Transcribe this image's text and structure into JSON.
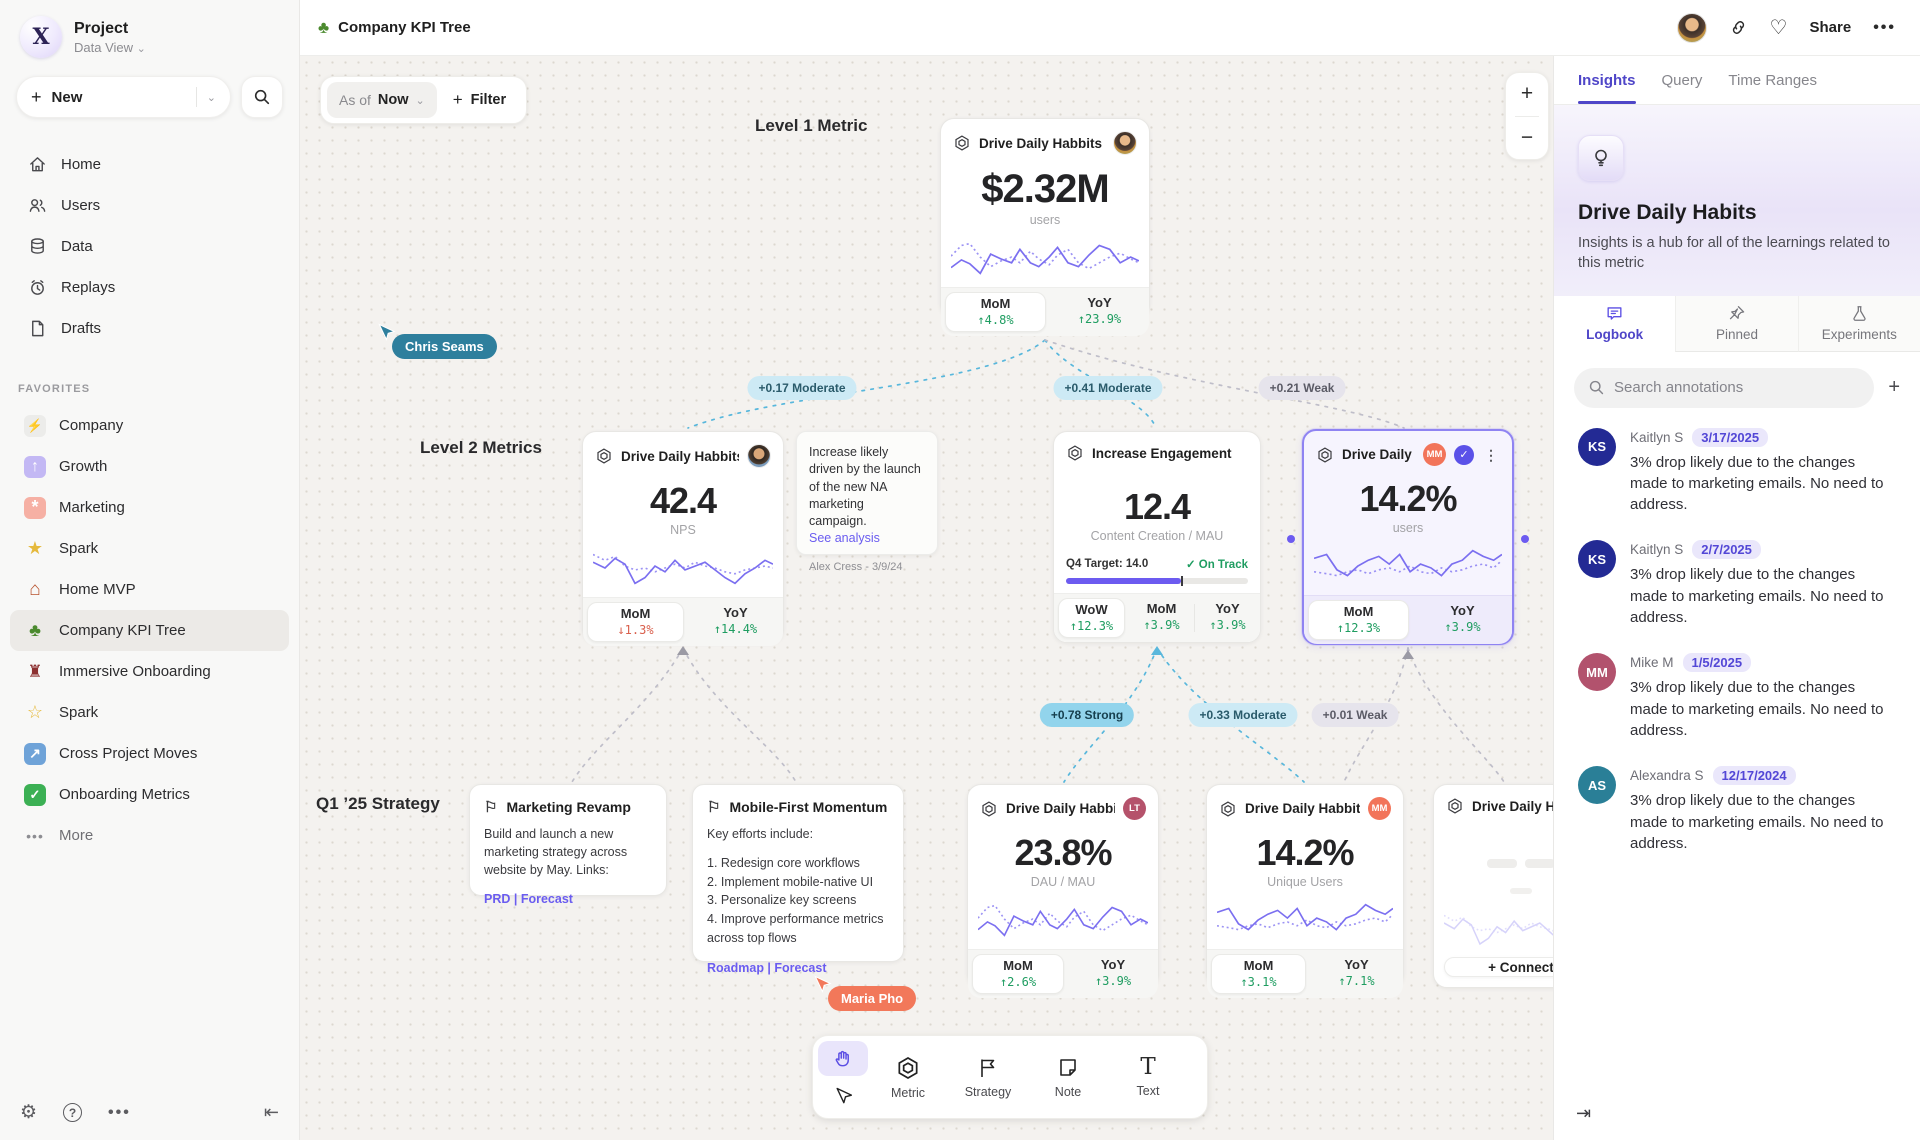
{
  "icons": {
    "logo": "X",
    "chevron": "⌄",
    "tree": "♣",
    "gear": "⚙",
    "help": "?",
    "more": "⋯",
    "collapse_left": "⇤",
    "collapse_right": "⇥",
    "heart": "♡",
    "plus": "+",
    "minus": "−",
    "kebab": "⋮",
    "check": "✓",
    "flag": "⚐",
    "text_tool": "T",
    "dots": "•••"
  },
  "sidebar": {
    "project_name": "Project",
    "project_view": "Data View",
    "new_label": "New",
    "nav": [
      {
        "label": "Home",
        "icon": "home-icon"
      },
      {
        "label": "Users",
        "icon": "users-icon"
      },
      {
        "label": "Data",
        "icon": "database-icon"
      },
      {
        "label": "Replays",
        "icon": "replay-clock-icon"
      },
      {
        "label": "Drafts",
        "icon": "draft-file-icon"
      }
    ],
    "favorites_title": "FAVORITES",
    "favorites": [
      {
        "label": "Company",
        "icon": "lightning",
        "glyph": "⚡"
      },
      {
        "label": "Growth",
        "icon": "rocket",
        "glyph": "↑"
      },
      {
        "label": "Marketing",
        "icon": "confetti",
        "glyph": "*"
      },
      {
        "label": "Spark",
        "icon": "star",
        "glyph": "★"
      },
      {
        "label": "Home MVP",
        "icon": "house",
        "glyph": "⌂"
      },
      {
        "label": "Company KPI Tree",
        "icon": "tree",
        "glyph": "♣"
      },
      {
        "label": "Immersive Onboarding",
        "icon": "train",
        "glyph": "♜"
      },
      {
        "label": "Spark",
        "icon": "sparkles",
        "glyph": "☆"
      },
      {
        "label": "Cross Project Moves",
        "icon": "cross-arrow",
        "glyph": "↗"
      },
      {
        "label": "Onboarding Metrics",
        "icon": "check-box",
        "glyph": "✓"
      }
    ],
    "more_label": "More"
  },
  "topbar": {
    "title": "Company KPI Tree",
    "share_label": "Share"
  },
  "canvas": {
    "asof_label": "As of",
    "asof_value": "Now",
    "filter_label": "Filter",
    "sections": {
      "l1": "Level 1 Metric",
      "l2": "Level 2 Metrics",
      "q1": "Q1 ’25 Strategy"
    },
    "edge_labels": [
      {
        "text": "+0.17 Moderate",
        "strength": "moderate"
      },
      {
        "text": "+0.41 Moderate",
        "strength": "moderate"
      },
      {
        "text": "+0.21 Weak",
        "strength": "weak"
      },
      {
        "text": "+0.78 Strong",
        "strength": "strong"
      },
      {
        "text": "+0.33 Moderate",
        "strength": "moderate"
      },
      {
        "text": "+0.01 Weak",
        "strength": "weak"
      }
    ],
    "cursors": [
      {
        "name": "Chris Seams",
        "color": "#2e7f9d"
      },
      {
        "name": "Maria Pho",
        "color": "#f2785a"
      }
    ]
  },
  "cards": {
    "l1": {
      "name": "Drive Daily Habbits",
      "value": "$2.32M",
      "unit": "users",
      "trends": [
        {
          "label": "MoM",
          "value": "↑4.8%",
          "dir": "up"
        },
        {
          "label": "YoY",
          "value": "↑23.9%",
          "dir": "up"
        }
      ]
    },
    "nps": {
      "name": "Drive Daily Habbits",
      "value": "42.4",
      "unit": "NPS",
      "trends": [
        {
          "label": "MoM",
          "value": "↓1.3%",
          "dir": "down"
        },
        {
          "label": "YoY",
          "value": "↑14.4%",
          "dir": "up"
        }
      ]
    },
    "note": {
      "text": "Increase likely driven by the launch of the new NA marketing campaign.",
      "link": "See analysis",
      "attribution": "Alex Cress - 3/9/24"
    },
    "engagement": {
      "name": "Increase Engagement",
      "value": "12.4",
      "unit": "Content Creation / MAU",
      "target_label": "Q4 Target: 14.0",
      "status": "✓ On Track",
      "progress_width": "63%",
      "trends": [
        {
          "label": "WoW",
          "value": "↑12.3%",
          "dir": "up"
        },
        {
          "label": "MoM",
          "value": "↑3.9%",
          "dir": "up"
        },
        {
          "label": "YoY",
          "value": "↑3.9%",
          "dir": "up"
        }
      ]
    },
    "selected": {
      "name": "Drive Daily Habb..",
      "badge": "MM",
      "value": "14.2%",
      "unit": "users",
      "trends": [
        {
          "label": "MoM",
          "value": "↑12.3%",
          "dir": "up"
        },
        {
          "label": "YoY",
          "value": "↑3.9%",
          "dir": "up"
        }
      ]
    },
    "mkt": {
      "name": "Marketing Revamp",
      "body": "Build and launch a new marketing strategy across website by May. Links:",
      "links": "PRD | Forecast"
    },
    "mobile": {
      "name": "Mobile-First Momentum",
      "body": "Key efforts include:",
      "items": [
        "1. Redesign core workflows",
        "2. Implement mobile-native UI",
        "3. Personalize key screens",
        "4. Improve performance metrics across top flows"
      ],
      "links": "Roadmap | Forecast"
    },
    "dau": {
      "name": "Drive Daily Habbits",
      "badge": "LT",
      "value": "23.8%",
      "unit": "DAU / MAU",
      "trends": [
        {
          "label": "MoM",
          "value": "↑2.6%",
          "dir": "up"
        },
        {
          "label": "YoY",
          "value": "↑3.9%",
          "dir": "up"
        }
      ]
    },
    "unique": {
      "name": "Drive Daily Habbits",
      "badge": "MM",
      "value": "14.2%",
      "unit": "Unique Users",
      "trends": [
        {
          "label": "MoM",
          "value": "↑3.1%",
          "dir": "up"
        },
        {
          "label": "YoY",
          "value": "↑7.1%",
          "dir": "up"
        }
      ]
    },
    "partial": {
      "name": "Drive Daily Hab",
      "connect_label": "+ Connect"
    }
  },
  "toolbar": {
    "tools": [
      {
        "label": "Metric"
      },
      {
        "label": "Strategy"
      },
      {
        "label": "Note"
      },
      {
        "label": "Text"
      }
    ]
  },
  "panel": {
    "tabs": [
      {
        "label": "Insights"
      },
      {
        "label": "Query"
      },
      {
        "label": "Time Ranges"
      }
    ],
    "title": "Drive Daily Habits",
    "description": "Insights is a hub for all of the learnings related to this metric",
    "subtabs": [
      {
        "label": "Logbook"
      },
      {
        "label": "Pinned"
      },
      {
        "label": "Experiments"
      }
    ],
    "search_placeholder": "Search annotations",
    "annotations": [
      {
        "initials": "KS",
        "name": "Kaitlyn S",
        "date": "3/17/2025",
        "color": "#232a94",
        "text": "3% drop likely due to the changes made to marketing emails. No need to address."
      },
      {
        "initials": "KS",
        "name": "Kaitlyn S",
        "date": "2/7/2025",
        "color": "#232a94",
        "text": "3% drop likely due to the changes made to marketing emails. No need to address."
      },
      {
        "initials": "MM",
        "name": "Mike M",
        "date": "1/5/2025",
        "color": "#b2526d",
        "text": "3% drop likely due to the changes made to marketing emails. No need to address."
      },
      {
        "initials": "AS",
        "name": "Alexandra S",
        "date": "12/17/2024",
        "color": "#2a7f97",
        "text": "3% drop likely due to the changes made to marketing emails. No need to address."
      }
    ]
  },
  "sparklines": {
    "a": {
      "solid": "0,36 10,28 18,32 28,42 38,22 48,27 58,31 66,17 76,31 84,35 94,25 102,15 112,31 122,35 132,23 142,13 152,17 162,31 172,25 180,29",
      "dotted": "0,24 10,13 18,11 28,25 38,35 48,29 58,25 66,31 76,19 84,27 94,33 102,23 112,17 122,31 132,37 142,31 152,25 162,21 172,27 180,31"
    },
    "b": {
      "solid": "0,20 12,26 22,16 32,22 42,42 52,36 62,24 72,30 82,18 92,28 102,24 112,20 122,28 132,36 142,42 152,32 162,26 172,18 180,22",
      "dotted": "0,12 12,18 22,14 32,24 42,28 52,26 62,30 72,26 82,22 92,26 102,20 112,24 122,26 132,30 142,32 152,28 162,26 172,24 180,26"
    },
    "c": {
      "solid": "0,18 12,14 22,30 32,36 42,26 52,20 62,16 72,24 82,14 92,32 102,24 112,28 122,36 132,24 142,20 152,10 162,16 172,20 180,14",
      "dotted": "0,32 12,34 22,36 32,32 42,30 52,34 62,30 72,28 82,32 92,26 102,32 112,34 122,28 132,32 142,30 152,26 162,24 172,28 180,20"
    }
  }
}
